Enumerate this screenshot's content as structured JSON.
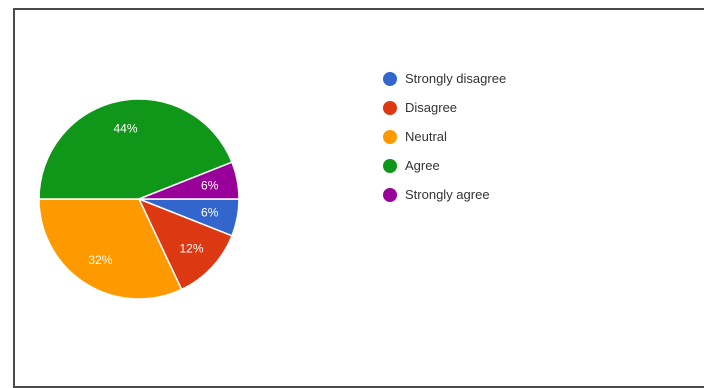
{
  "chart_data": {
    "type": "pie",
    "slices": [
      {
        "label": "Strongly disagree",
        "value": 6,
        "display": "6%",
        "color": "#3366cc"
      },
      {
        "label": "Disagree",
        "value": 12,
        "display": "12%",
        "color": "#dc3912"
      },
      {
        "label": "Neutral",
        "value": 32,
        "display": "32%",
        "color": "#ff9900"
      },
      {
        "label": "Agree",
        "value": 44,
        "display": "44%",
        "color": "#109618"
      },
      {
        "label": "Strongly agree",
        "value": 6,
        "display": "6%",
        "color": "#990099"
      }
    ],
    "legend_position": "right",
    "start_direction": "3 o'clock, clockwise"
  }
}
